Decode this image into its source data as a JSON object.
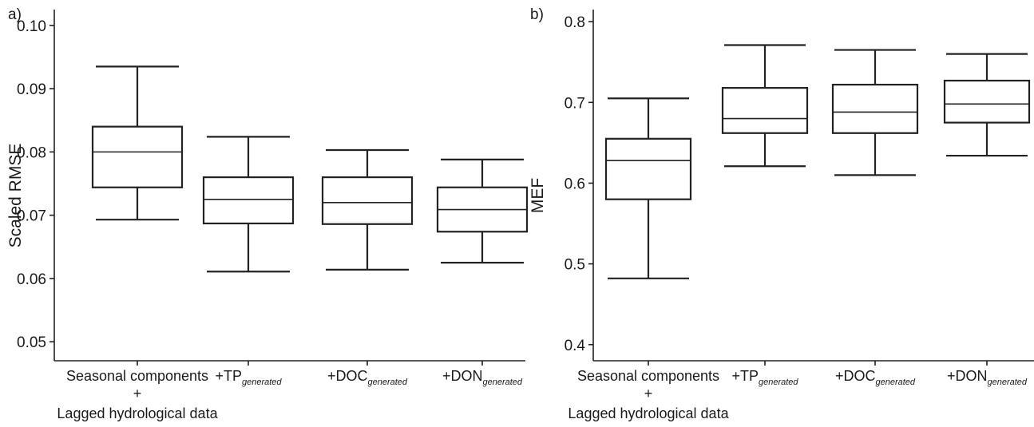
{
  "panels": [
    {
      "letter": "a)"
    },
    {
      "letter": "b)"
    }
  ],
  "categories": [
    {
      "lines": [
        "Seasonal components",
        "+",
        "Lagged hydrological data"
      ]
    },
    {
      "main": "+TP",
      "sub": "generated"
    },
    {
      "main": "+DOC",
      "sub": "generated"
    },
    {
      "main": "+DON",
      "sub": "generated"
    }
  ],
  "chart_data": [
    {
      "type": "box",
      "panel": "a)",
      "ylabel": "Scaled RMSE",
      "xlabel": "",
      "ylim": [
        0.047,
        0.1025
      ],
      "yticks": [
        0.05,
        0.06,
        0.07,
        0.08,
        0.09,
        0.1
      ],
      "ytick_labels": [
        "0.05",
        "0.06",
        "0.07",
        "0.08",
        "0.09",
        "0.10"
      ],
      "grid": false,
      "boxes": [
        {
          "category": "Seasonal components + Lagged hydrological data",
          "whisker_low": 0.0693,
          "q1": 0.0744,
          "median": 0.08,
          "q3": 0.084,
          "whisker_high": 0.0935
        },
        {
          "category": "+TP generated",
          "whisker_low": 0.0611,
          "q1": 0.0687,
          "median": 0.0725,
          "q3": 0.076,
          "whisker_high": 0.0824
        },
        {
          "category": "+DOC generated",
          "whisker_low": 0.0614,
          "q1": 0.0686,
          "median": 0.072,
          "q3": 0.076,
          "whisker_high": 0.0803
        },
        {
          "category": "+DON generated",
          "whisker_low": 0.0625,
          "q1": 0.0674,
          "median": 0.0709,
          "q3": 0.0744,
          "whisker_high": 0.0788
        }
      ]
    },
    {
      "type": "box",
      "panel": "b)",
      "ylabel": "MEF",
      "xlabel": "",
      "ylim": [
        0.38,
        0.815
      ],
      "yticks": [
        0.4,
        0.5,
        0.6,
        0.7,
        0.8
      ],
      "ytick_labels": [
        "0.4",
        "0.5",
        "0.6",
        "0.7",
        "0.8"
      ],
      "grid": false,
      "boxes": [
        {
          "category": "Seasonal components + Lagged hydrological data",
          "whisker_low": 0.482,
          "q1": 0.58,
          "median": 0.628,
          "q3": 0.655,
          "whisker_high": 0.705
        },
        {
          "category": "+TP generated",
          "whisker_low": 0.621,
          "q1": 0.662,
          "median": 0.68,
          "q3": 0.718,
          "whisker_high": 0.771
        },
        {
          "category": "+DOC generated",
          "whisker_low": 0.61,
          "q1": 0.662,
          "median": 0.688,
          "q3": 0.722,
          "whisker_high": 0.765
        },
        {
          "category": "+DON generated",
          "whisker_low": 0.634,
          "q1": 0.675,
          "median": 0.698,
          "q3": 0.727,
          "whisker_high": 0.76
        }
      ]
    }
  ]
}
